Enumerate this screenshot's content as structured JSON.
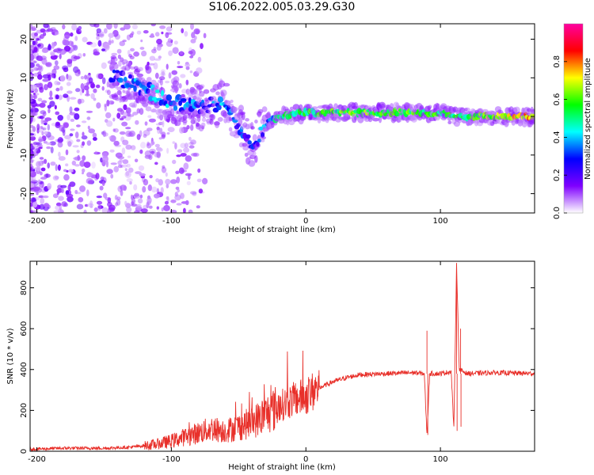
{
  "title": "S106.2022.005.03.29.G30",
  "chart_data": [
    {
      "type": "heatmap",
      "xlabel": "Height of straight line (km)",
      "ylabel": "Frequency (Hz)",
      "xlim": [
        -205,
        170
      ],
      "ylim": [
        -25,
        24
      ],
      "xticks": [
        -200,
        -100,
        0,
        100
      ],
      "yticks": [
        -20,
        -10,
        0,
        10,
        20
      ],
      "colorbar": {
        "label": "Normalized spectral amplitude",
        "range": [
          0,
          1
        ],
        "ticks": [
          0.0,
          0.2,
          0.4,
          0.6,
          0.8
        ],
        "tick_labels": [
          "0.0",
          "0.2",
          "0.4",
          "0.6",
          "0.8"
        ],
        "colors": [
          "#ffffff",
          "#7f00ff",
          "#0000ff",
          "#00ffff",
          "#00ff00",
          "#ffff00",
          "#ff0000",
          "#ff00a0"
        ]
      },
      "ridge": [
        {
          "x": -140,
          "f": 10,
          "amp": 0.3
        },
        {
          "x": -120,
          "f": 7,
          "amp": 0.35
        },
        {
          "x": -100,
          "f": 4,
          "amp": 0.35
        },
        {
          "x": -80,
          "f": 2,
          "amp": 0.3
        },
        {
          "x": -60,
          "f": 4,
          "amp": 0.35
        },
        {
          "x": -50,
          "f": -2,
          "amp": 0.3
        },
        {
          "x": -40,
          "f": -8,
          "amp": 0.25
        },
        {
          "x": -30,
          "f": -2,
          "amp": 0.35
        },
        {
          "x": -20,
          "f": 0,
          "amp": 0.45
        },
        {
          "x": 0,
          "f": 1,
          "amp": 0.55
        },
        {
          "x": 50,
          "f": 1,
          "amp": 0.6
        },
        {
          "x": 100,
          "f": 1,
          "amp": 0.55
        },
        {
          "x": 110,
          "f": 0,
          "amp": 0.5
        },
        {
          "x": 165,
          "f": 0,
          "amp": 0.75
        }
      ]
    },
    {
      "type": "line",
      "xlabel": "Height of straight line (km)",
      "ylabel": "SNR (10 * v/v)",
      "xlim": [
        -205,
        170
      ],
      "ylim": [
        0,
        930
      ],
      "xticks": [
        -200,
        -100,
        0,
        100
      ],
      "yticks": [
        0,
        200,
        400,
        600,
        800
      ],
      "color": "#e8302a",
      "x": [
        -205,
        -180,
        -150,
        -130,
        -110,
        -100,
        -90,
        -80,
        -70,
        -60,
        -50,
        -40,
        -30,
        -20,
        -10,
        0,
        10,
        20,
        30,
        40,
        60,
        80,
        88,
        90,
        92,
        100,
        108,
        110,
        112,
        114,
        120,
        140,
        170
      ],
      "y": [
        10,
        15,
        15,
        20,
        35,
        50,
        70,
        90,
        110,
        100,
        120,
        140,
        180,
        220,
        250,
        270,
        310,
        340,
        360,
        375,
        380,
        385,
        380,
        80,
        380,
        380,
        390,
        110,
        920,
        400,
        380,
        385,
        380
      ]
    }
  ]
}
